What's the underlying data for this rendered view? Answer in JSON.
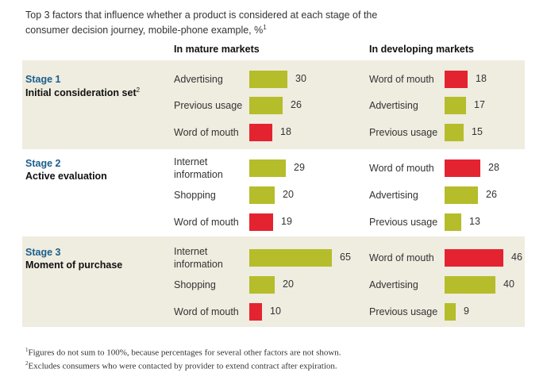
{
  "title": "Top 3 factors that influence whether a product is considered at each stage of the consumer decision journey, mobile-phone example, %",
  "title_note": "1",
  "colors": {
    "positive": "#b5bd2b",
    "negative": "#e42331",
    "band": "#efece0",
    "stage_label": "#1a5e8c"
  },
  "chart_data": {
    "type": "bar",
    "columns": [
      "In mature markets",
      "In developing markets"
    ],
    "stages": [
      {
        "number": "Stage 1",
        "name": "Initial consideration set",
        "name_note": "2",
        "mature": [
          {
            "factor": "Advertising",
            "value": 30,
            "color": "#b5bd2b"
          },
          {
            "factor": "Previous usage",
            "value": 26,
            "color": "#b5bd2b"
          },
          {
            "factor": "Word of mouth",
            "value": 18,
            "color": "#e42331"
          }
        ],
        "developing": [
          {
            "factor": "Word of mouth",
            "value": 18,
            "color": "#e42331"
          },
          {
            "factor": "Advertising",
            "value": 17,
            "color": "#b5bd2b"
          },
          {
            "factor": "Previous usage",
            "value": 15,
            "color": "#b5bd2b"
          }
        ]
      },
      {
        "number": "Stage 2",
        "name": "Active evaluation",
        "name_note": "",
        "mature": [
          {
            "factor": "Internet information",
            "value": 29,
            "color": "#b5bd2b"
          },
          {
            "factor": "Shopping",
            "value": 20,
            "color": "#b5bd2b"
          },
          {
            "factor": "Word of mouth",
            "value": 19,
            "color": "#e42331"
          }
        ],
        "developing": [
          {
            "factor": "Word of mouth",
            "value": 28,
            "color": "#e42331"
          },
          {
            "factor": "Advertising",
            "value": 26,
            "color": "#b5bd2b"
          },
          {
            "factor": "Previous usage",
            "value": 13,
            "color": "#b5bd2b"
          }
        ]
      },
      {
        "number": "Stage 3",
        "name": "Moment of purchase",
        "name_note": "",
        "mature": [
          {
            "factor": "Internet information",
            "value": 65,
            "color": "#b5bd2b"
          },
          {
            "factor": "Shopping",
            "value": 20,
            "color": "#b5bd2b"
          },
          {
            "factor": "Word of mouth",
            "value": 10,
            "color": "#e42331"
          }
        ],
        "developing": [
          {
            "factor": "Word of mouth",
            "value": 46,
            "color": "#e42331"
          },
          {
            "factor": "Advertising",
            "value": 40,
            "color": "#b5bd2b"
          },
          {
            "factor": "Previous usage",
            "value": 9,
            "color": "#b5bd2b"
          }
        ]
      }
    ]
  },
  "footnotes": [
    {
      "mark": "1",
      "text": "Figures do not sum to 100%, because percentages for several other factors are not shown."
    },
    {
      "mark": "2",
      "text": "Excludes consumers who were contacted by provider to extend contract after expiration."
    }
  ]
}
